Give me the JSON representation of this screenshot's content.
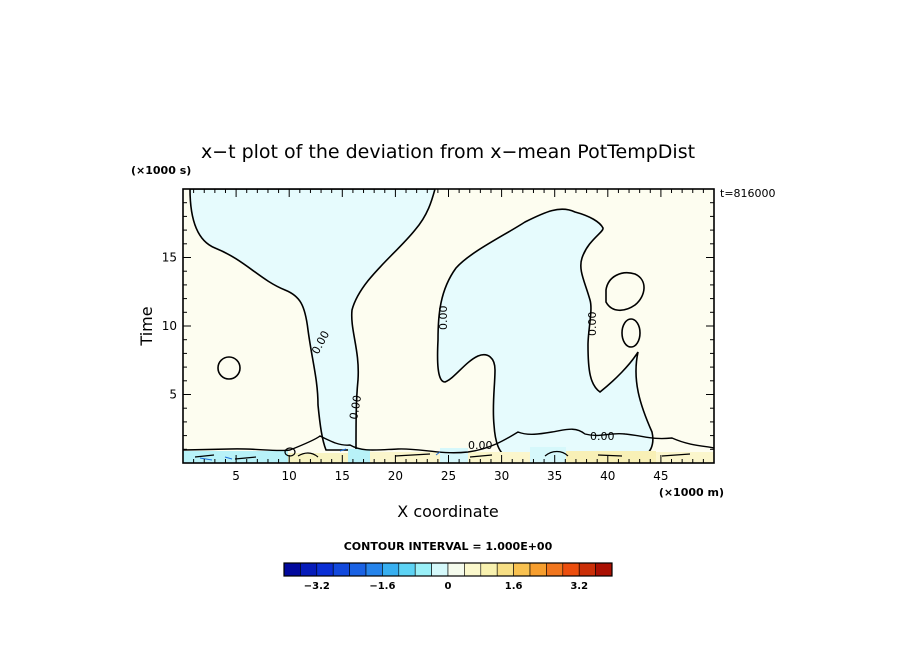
{
  "chart_data": {
    "type": "heatmap",
    "title": "x−t plot of the deviation from x−mean PotTempDist",
    "time_stamp": "t=816000",
    "xlabel": "X coordinate",
    "ylabel": "Time",
    "x_unit": "(×1000 m)",
    "y_unit": "(×1000 s)",
    "xlim": [
      0,
      50
    ],
    "ylim": [
      0,
      20
    ],
    "x_ticks": [
      5,
      10,
      15,
      20,
      25,
      30,
      35,
      40,
      45
    ],
    "y_ticks": [
      5,
      10,
      15
    ],
    "contour_label": "0.00",
    "contour_interval_text": "CONTOUR INTERVAL = 1.000E+00",
    "colorbar": {
      "min": -4,
      "max": 4,
      "step": 0.4,
      "tick_values": [
        -3.2,
        -1.6,
        0,
        1.6,
        3.2
      ],
      "tick_labels": [
        "−3.2",
        "−1.6",
        "0",
        "1.6",
        "3.2"
      ]
    },
    "colors": {
      "positive_fill": "#fdfdf0",
      "negative_fill": "#e6fbfd",
      "contour": "#000000"
    }
  }
}
